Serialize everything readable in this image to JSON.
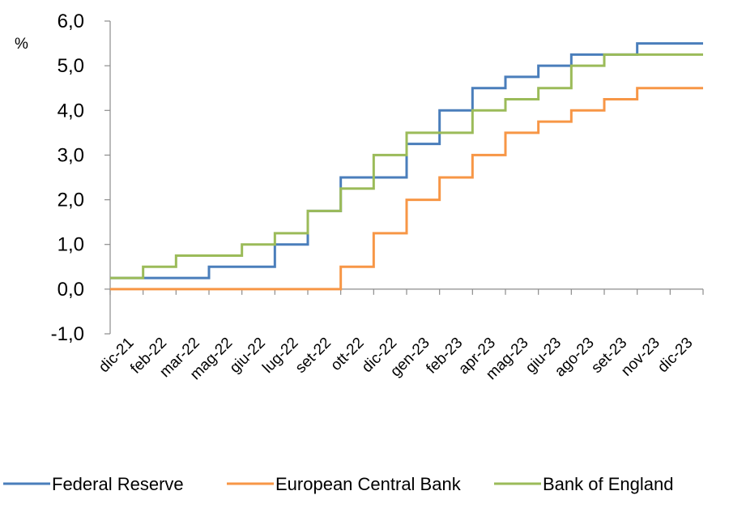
{
  "chart_data": {
    "type": "line",
    "step": true,
    "unit_label": "%",
    "ylim": [
      -1.0,
      6.0
    ],
    "yticks": [
      "-1,0",
      "0,0",
      "1,0",
      "2,0",
      "3,0",
      "4,0",
      "5,0",
      "6,0"
    ],
    "x_tick_labels": [
      "dic-21",
      "feb-22",
      "mar-22",
      "mag-22",
      "giu-22",
      "lug-22",
      "set-22",
      "ott-22",
      "dic-22",
      "gen-23",
      "feb-23",
      "apr-23",
      "mag-23",
      "giu-23",
      "ago-23",
      "set-23",
      "nov-23",
      "dic-23"
    ],
    "grid": false,
    "legend_position": "bottom",
    "series": [
      {
        "name": "Federal Reserve",
        "color": "#4A7EBB",
        "values": [
          0.25,
          0.25,
          0.25,
          0.5,
          0.5,
          1.0,
          1.75,
          2.5,
          2.5,
          3.25,
          4.0,
          4.5,
          4.75,
          5.0,
          5.25,
          5.25,
          5.5,
          5.5,
          5.5
        ]
      },
      {
        "name": "European Central Bank",
        "color": "#F79646",
        "values": [
          0.0,
          0.0,
          0.0,
          0.0,
          0.0,
          0.0,
          0.0,
          0.5,
          1.25,
          2.0,
          2.5,
          3.0,
          3.5,
          3.75,
          4.0,
          4.25,
          4.5,
          4.5,
          4.5
        ]
      },
      {
        "name": "Bank of England",
        "color": "#9BBB59",
        "values": [
          0.25,
          0.5,
          0.75,
          0.75,
          1.0,
          1.25,
          1.75,
          2.25,
          3.0,
          3.5,
          3.5,
          4.0,
          4.25,
          4.5,
          5.0,
          5.25,
          5.25,
          5.25,
          5.25
        ]
      }
    ]
  }
}
